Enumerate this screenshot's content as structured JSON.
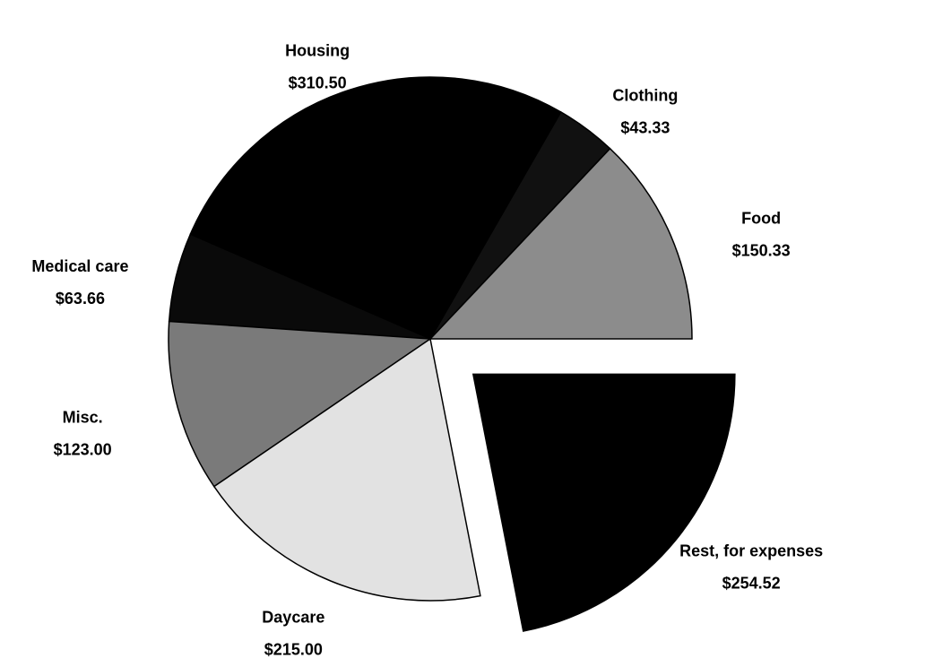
{
  "chart_data": {
    "type": "pie",
    "categories": [
      "Food",
      "Clothing",
      "Housing",
      "Medical care",
      "Misc.",
      "Daycare",
      "Rest, for expenses"
    ],
    "values": [
      150.33,
      43.33,
      310.5,
      63.66,
      123.0,
      215.0,
      254.52
    ],
    "value_labels": [
      "$150.33",
      "$43.33",
      "$310.50",
      "$63.66",
      "$123.00",
      "$215.00",
      "$254.52"
    ],
    "colors": [
      "#8c8c8c",
      "#111111",
      "#000000",
      "#0a0a0a",
      "#7a7a7a",
      "#e2e2e2",
      "#000000"
    ],
    "explode": [
      false,
      false,
      false,
      false,
      false,
      false,
      true
    ]
  }
}
